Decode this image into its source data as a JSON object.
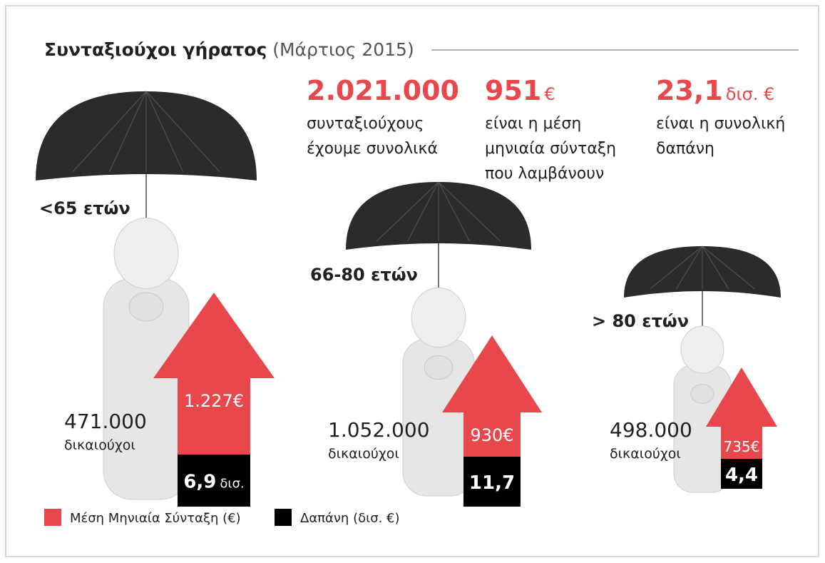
{
  "header": {
    "title": "Συνταξιούχοι γήρατος",
    "subtitle": "(Μάρτιος 2015)"
  },
  "stats": [
    {
      "value": "2.021.000",
      "lines": [
        "συνταξιούχους",
        "έχουμε συνολικά"
      ]
    },
    {
      "value": "951",
      "unit": "€",
      "lines": [
        "είναι η μέση",
        "μηνιαία σύνταξη",
        "που λαμβάνουν"
      ]
    },
    {
      "value": "23,1",
      "unit": "δισ. €",
      "lines": [
        "είναι η συνολική",
        "δαπάνη"
      ]
    }
  ],
  "groups": [
    {
      "label": "<65 ετών",
      "count": "471.000",
      "count_label": "δικαιούχοι",
      "pension": "1.227€",
      "spending": "6,9",
      "spending_unit": "δισ."
    },
    {
      "label": "66-80 ετών",
      "count": "1.052.000",
      "count_label": "δικαιούχοι",
      "pension": "930€",
      "spending": "11,7"
    },
    {
      "label": "> 80 ετών",
      "count": "498.000",
      "count_label": "δικαιούχοι",
      "pension": "735€",
      "spending": "4,4"
    }
  ],
  "legend": [
    {
      "label": "Μέση Μηνιαία Σύνταξη (€)",
      "color": "#e8474c"
    },
    {
      "label": "Δαπάνη (δισ. €)",
      "color": "#000000"
    }
  ]
}
